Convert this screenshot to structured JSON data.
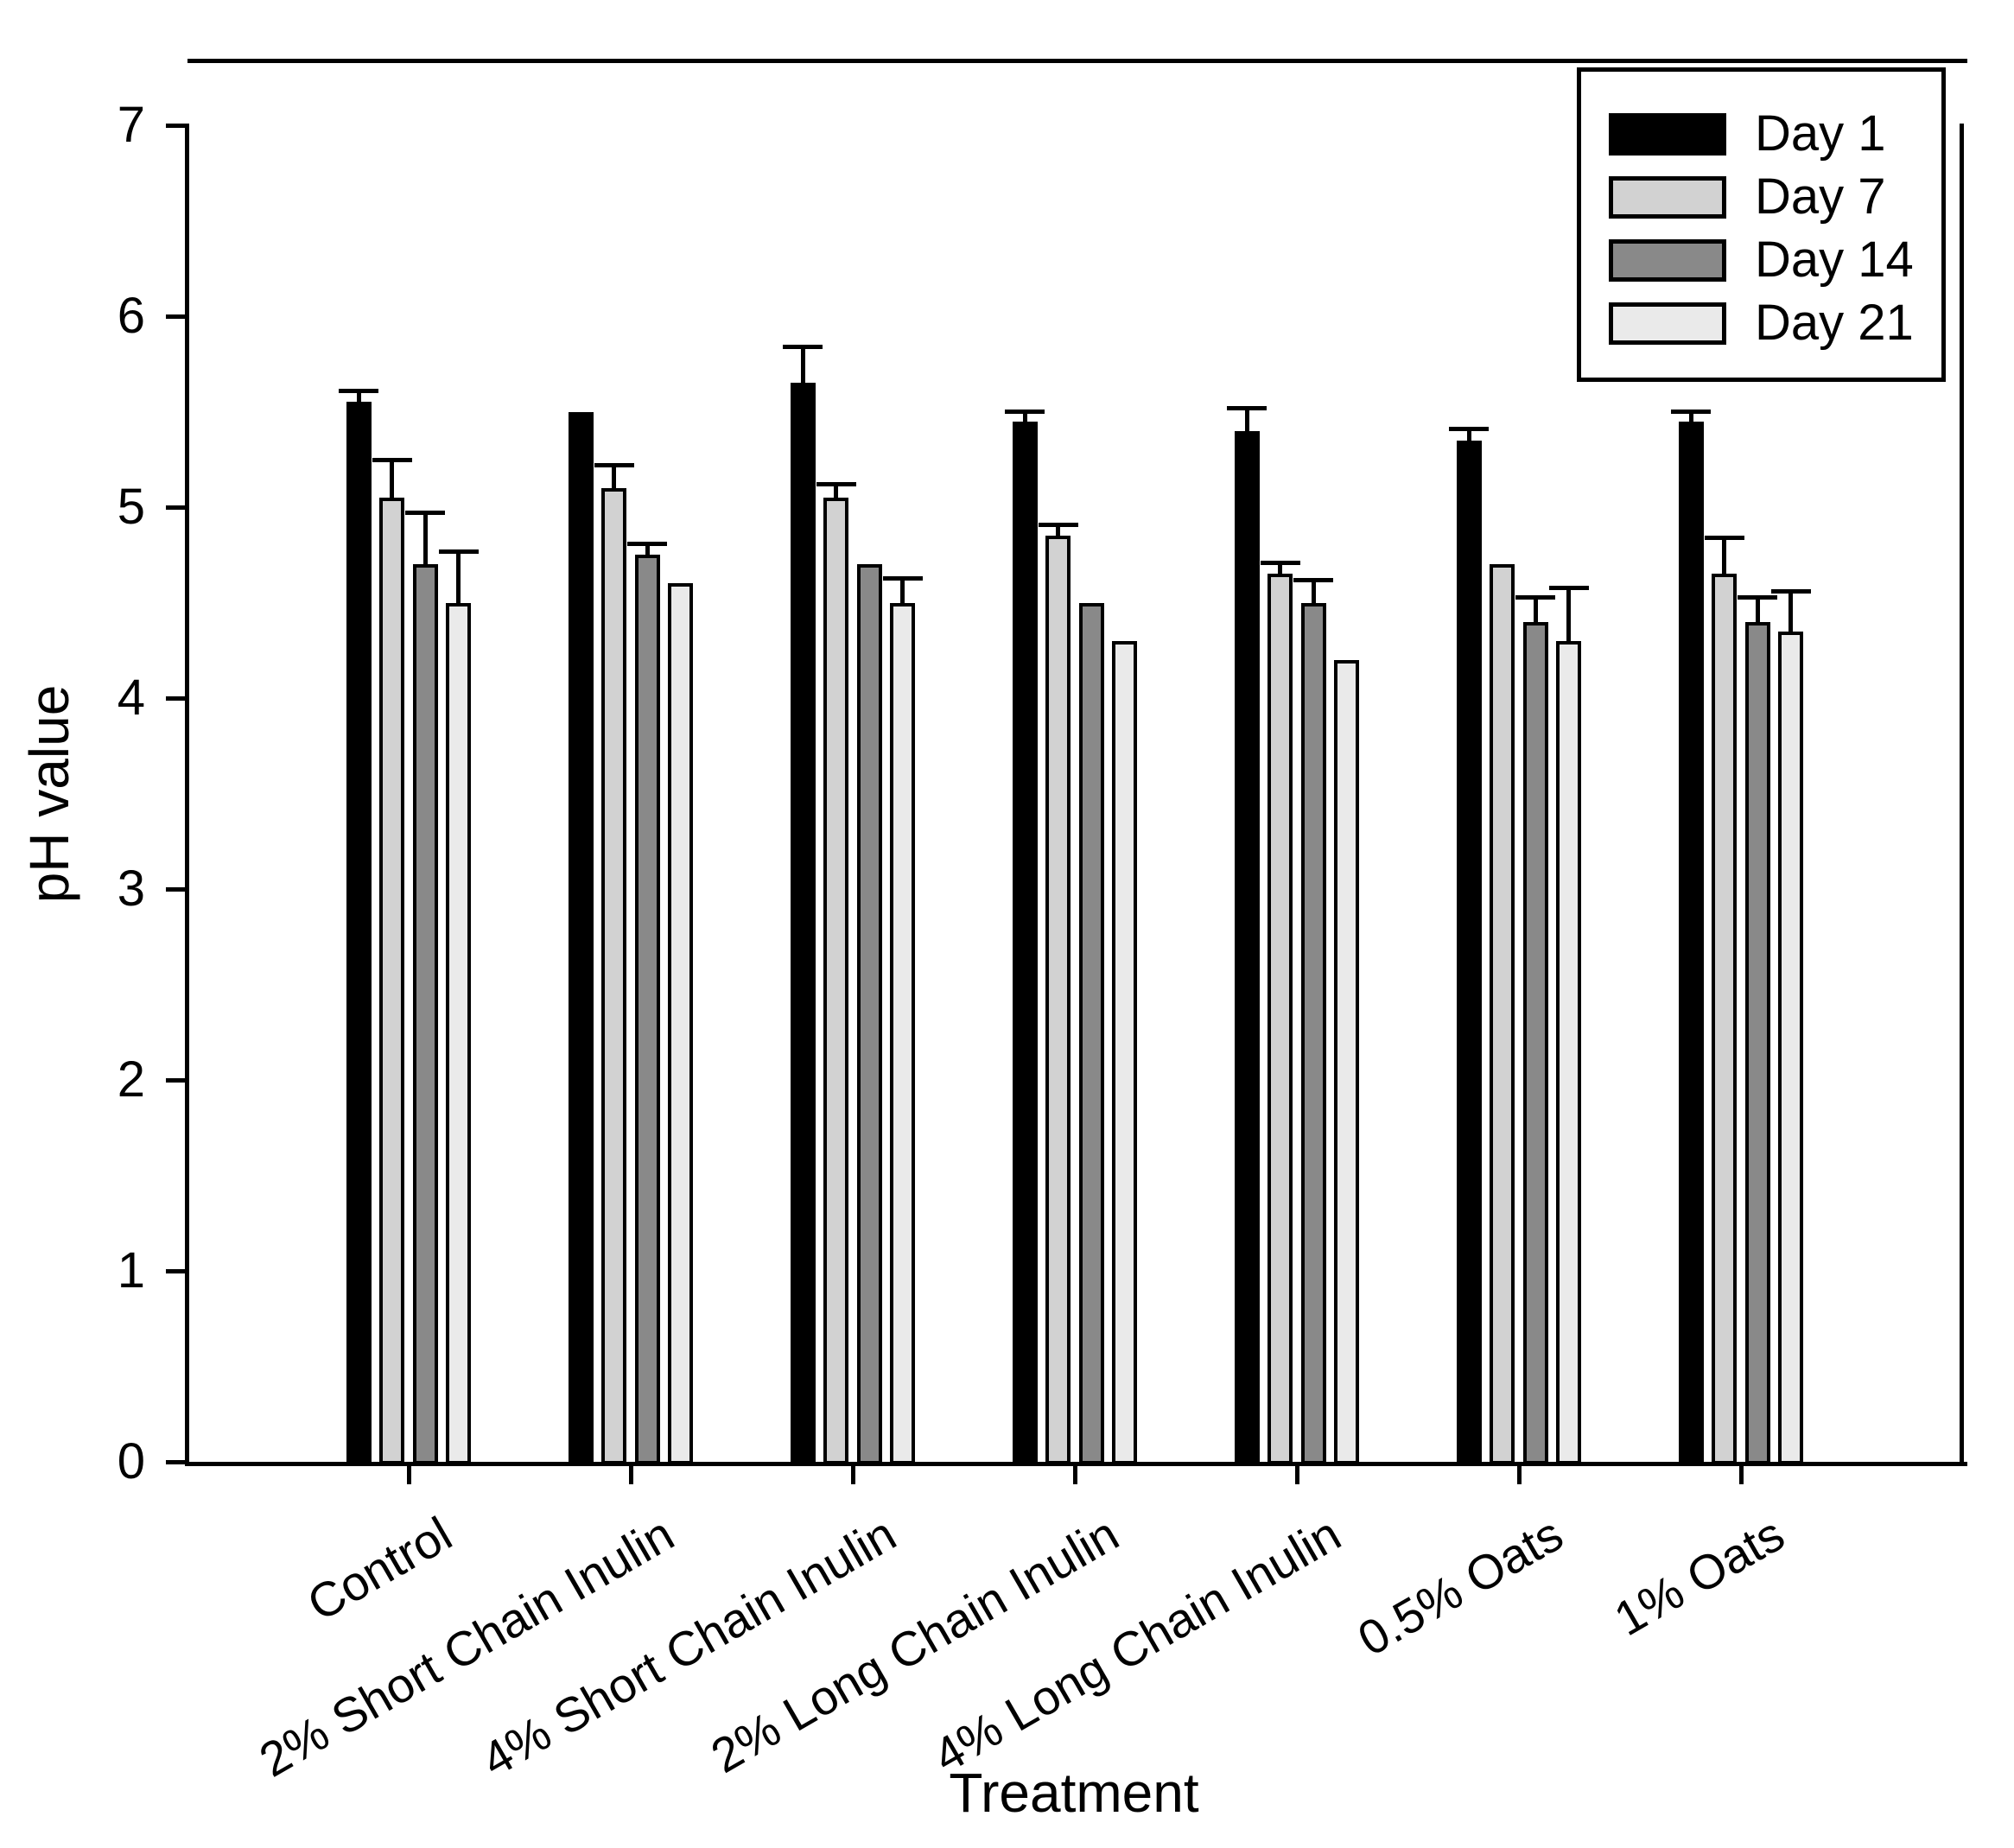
{
  "figure": {
    "background": "#ffffff",
    "frame_color": "#000000"
  },
  "chart_data": {
    "type": "bar",
    "title": "",
    "xlabel": "Treatment",
    "ylabel": "pH value",
    "ylim": [
      0,
      7
    ],
    "yticks": [
      0,
      1,
      2,
      3,
      4,
      5,
      6,
      7
    ],
    "grid": false,
    "error_bars": "upper",
    "bar_outline_color": "#000000",
    "legend_position": "top-right",
    "categories": [
      "Control",
      "2% Short Chain Inulin",
      "4% Short Chain Inulin",
      "2% Long Chain Inulin",
      "4% Long Chain Inulin",
      "0.5% Oats",
      "1% Oats"
    ],
    "series": [
      {
        "name": "Day 1",
        "color": "#000000",
        "values": [
          5.55,
          5.5,
          5.65,
          5.45,
          5.4,
          5.35,
          5.45
        ],
        "errors": [
          0.07,
          0.0,
          0.2,
          0.06,
          0.13,
          0.07,
          0.06
        ]
      },
      {
        "name": "Day 7",
        "color": "#d2d2d2",
        "values": [
          5.05,
          5.1,
          5.05,
          4.85,
          4.65,
          4.7,
          4.65
        ],
        "errors": [
          0.21,
          0.13,
          0.08,
          0.07,
          0.07,
          0.0,
          0.2
        ]
      },
      {
        "name": "Day 14",
        "color": "#898989",
        "values": [
          4.7,
          4.75,
          4.7,
          4.5,
          4.5,
          4.4,
          4.4
        ],
        "errors": [
          0.28,
          0.07,
          0.0,
          0.0,
          0.13,
          0.14,
          0.14
        ]
      },
      {
        "name": "Day 21",
        "color": "#eaeaea",
        "values": [
          4.5,
          4.6,
          4.5,
          4.3,
          4.2,
          4.3,
          4.35
        ],
        "errors": [
          0.28,
          0.0,
          0.14,
          0.0,
          0.0,
          0.29,
          0.22
        ]
      }
    ]
  }
}
